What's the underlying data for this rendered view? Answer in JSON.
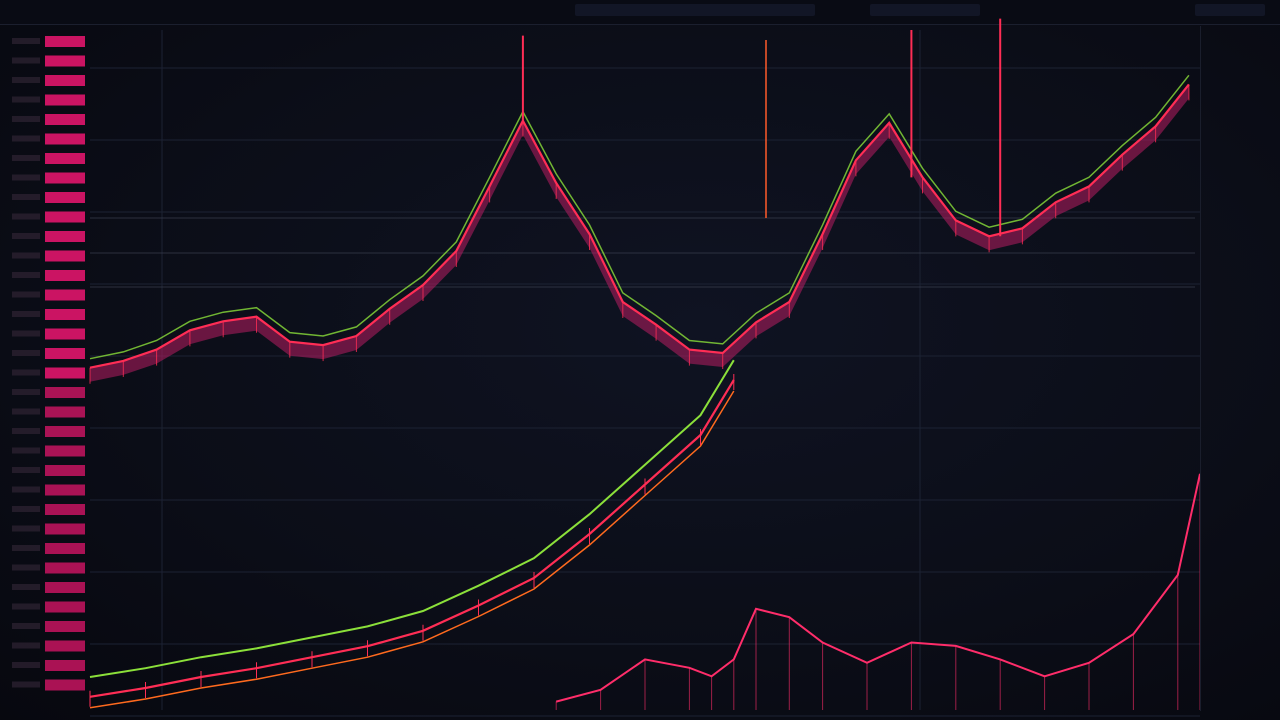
{
  "chart_data": {
    "type": "line",
    "title": "",
    "xlabel": "",
    "ylabel": "",
    "grid": true,
    "colors": {
      "background": "#0b0d17",
      "price": "#ff2d55",
      "price_fill": "#b81e63",
      "ma_green": "#8be03a",
      "ma_orange": "#ff6a1e",
      "volume": "#ff2d6a",
      "depth_bar": "#e0156b",
      "grid": "#1c2233"
    },
    "price_series": {
      "name": "",
      "x": [
        0,
        3,
        6,
        9,
        12,
        15,
        18,
        21,
        24,
        27,
        30,
        33,
        36,
        39,
        42,
        45,
        48,
        51,
        54,
        57,
        60,
        63,
        66,
        69,
        72,
        75,
        78,
        81,
        84,
        87,
        90,
        93,
        96,
        99
      ],
      "values": [
        302,
        308,
        318,
        335,
        343,
        347,
        325,
        322,
        330,
        354,
        375,
        405,
        462,
        520,
        465,
        420,
        360,
        340,
        318,
        315,
        342,
        360,
        420,
        485,
        518,
        470,
        432,
        418,
        425,
        448,
        462,
        490,
        515,
        552
      ]
    },
    "trend_series": {
      "name": "",
      "x": [
        0,
        5,
        10,
        15,
        20,
        25,
        30,
        35,
        40,
        45,
        50,
        55,
        58
      ],
      "values": [
        12,
        20,
        30,
        38,
        48,
        58,
        72,
        95,
        120,
        160,
        205,
        250,
        300
      ]
    },
    "volume_series": {
      "name": "",
      "x": [
        42,
        46,
        50,
        54,
        56,
        58,
        60,
        63,
        66,
        70,
        74,
        78,
        82,
        86,
        90,
        94,
        98,
        100
      ],
      "values": [
        5,
        12,
        30,
        25,
        20,
        30,
        60,
        55,
        40,
        28,
        40,
        38,
        30,
        20,
        28,
        45,
        80,
        140
      ]
    },
    "depth_bars": 34
  }
}
